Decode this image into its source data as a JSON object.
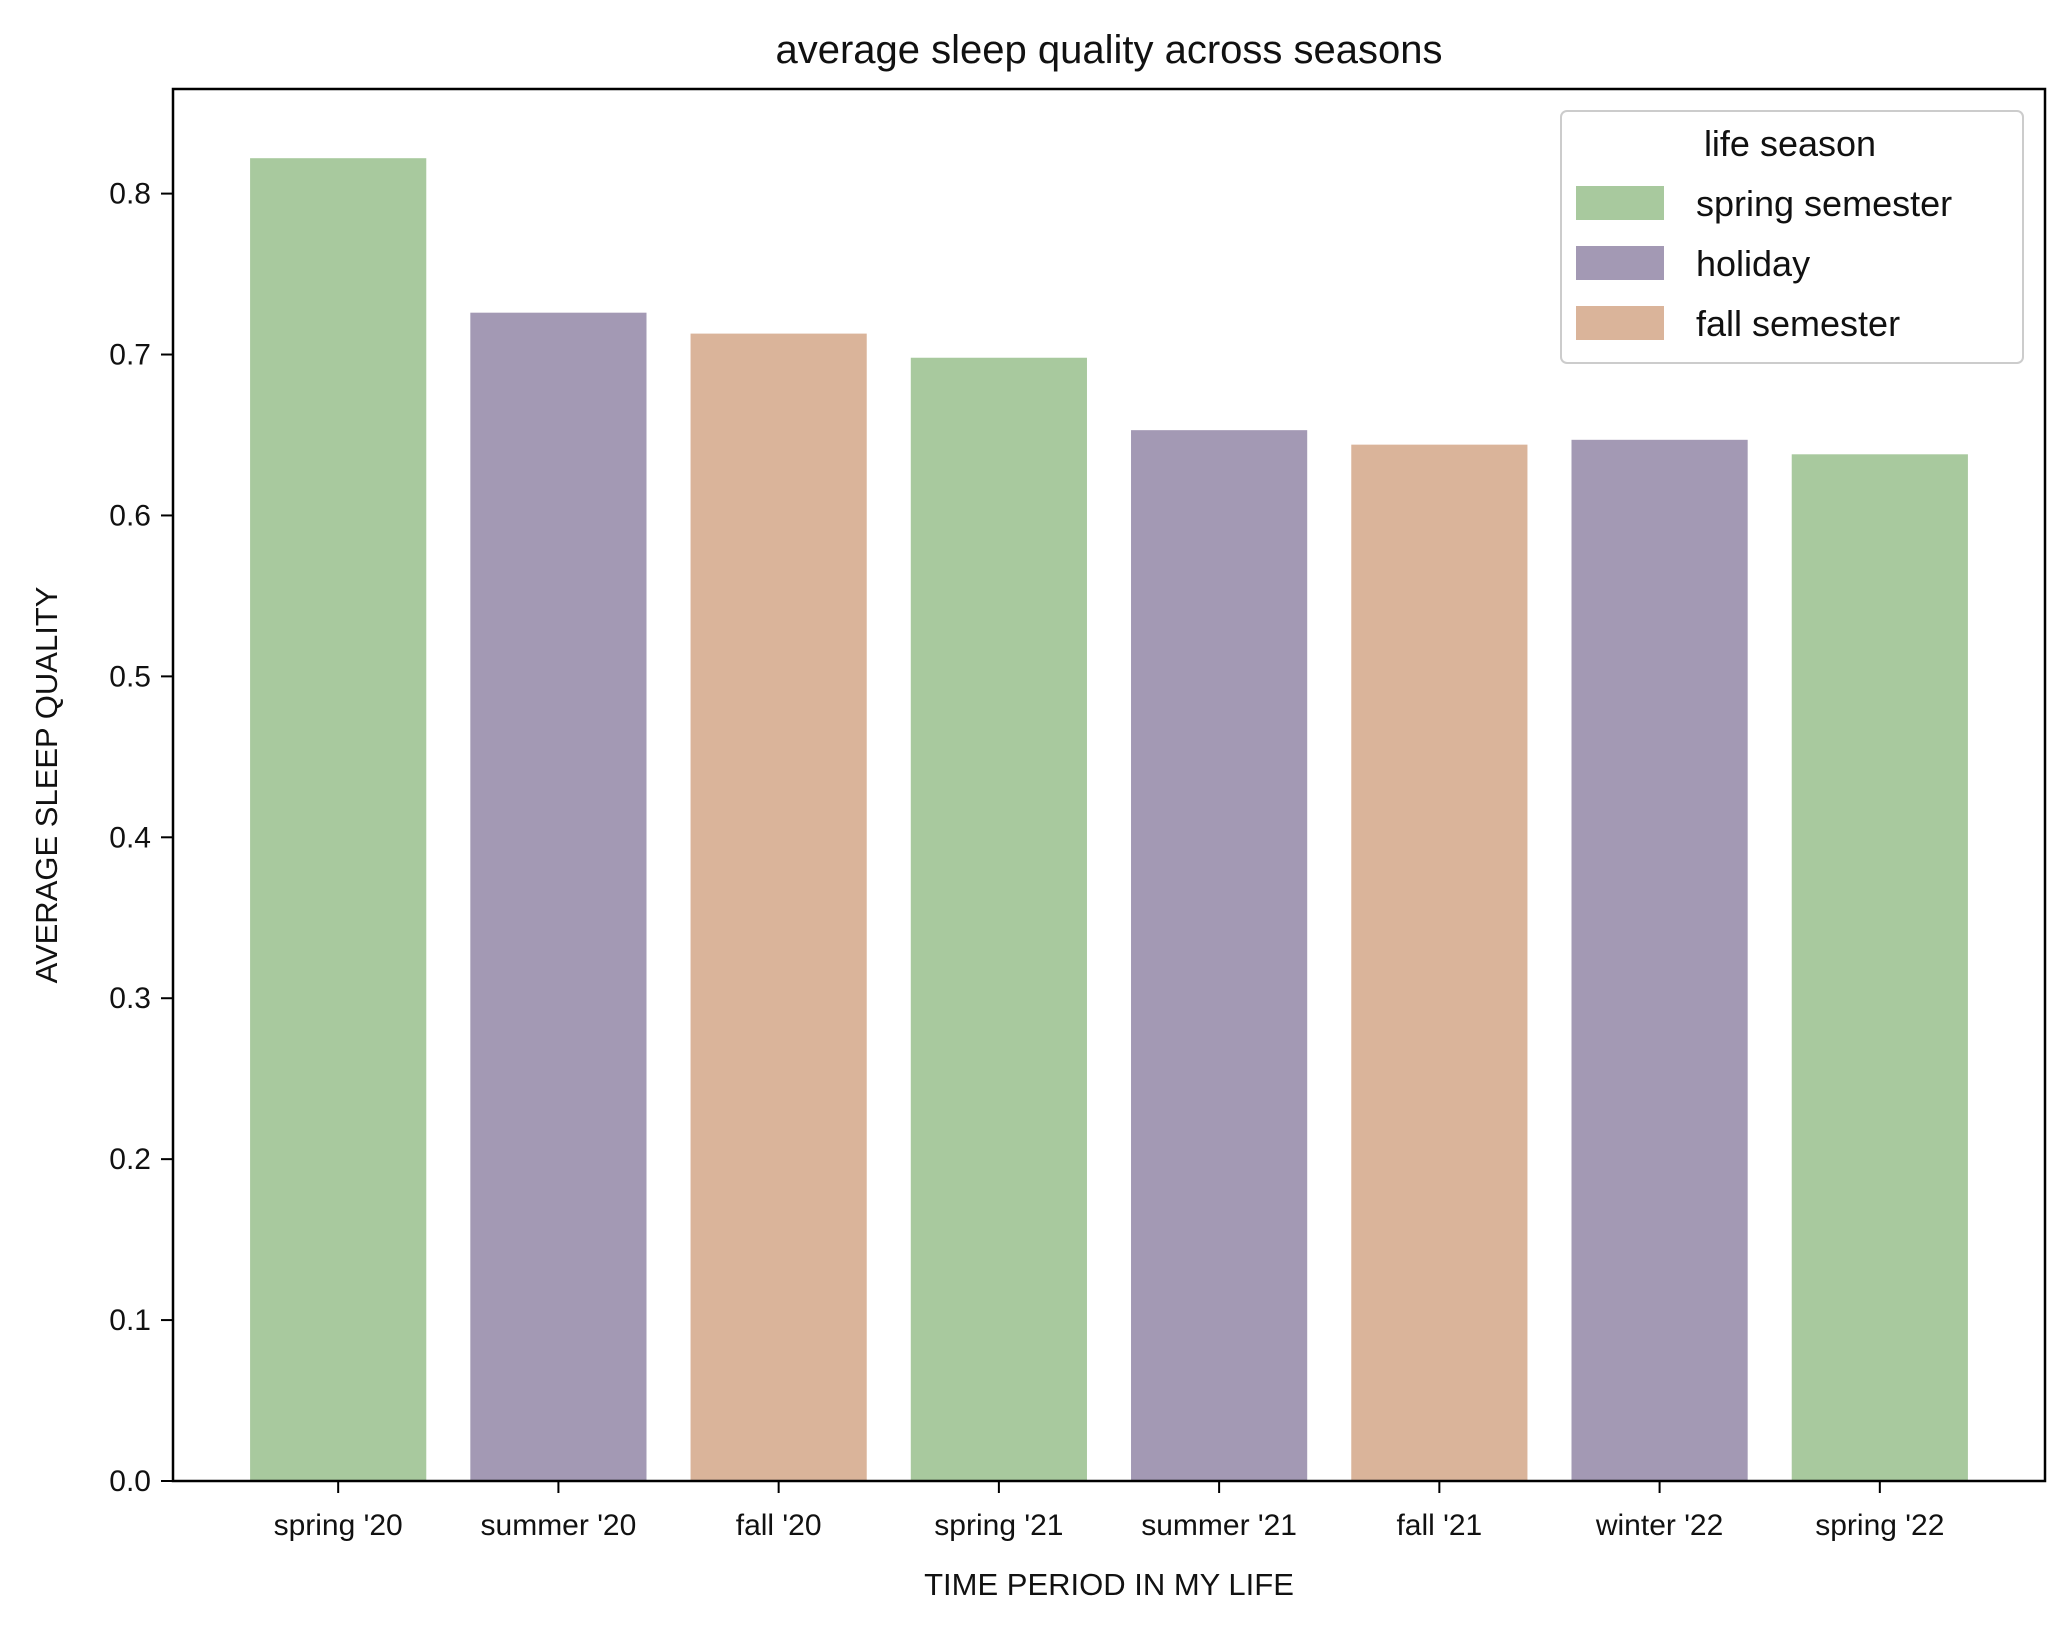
{
  "chart_data": {
    "type": "bar",
    "title": "average sleep quality across seasons",
    "xlabel": "TIME PERIOD IN MY LIFE",
    "ylabel": "AVERAGE SLEEP QUALITY",
    "categories": [
      "spring '20",
      "summer '20",
      "fall '20",
      "spring '21",
      "summer '21",
      "fall '21",
      "winter '22",
      "spring '22"
    ],
    "values": [
      0.822,
      0.726,
      0.713,
      0.698,
      0.653,
      0.644,
      0.647,
      0.638
    ],
    "bar_groups": [
      "spring semester",
      "holiday",
      "fall semester",
      "spring semester",
      "holiday",
      "fall semester",
      "holiday",
      "spring semester"
    ],
    "ylim": [
      0,
      0.865
    ],
    "yticks": [
      "0.0",
      "0.1",
      "0.2",
      "0.3",
      "0.4",
      "0.5",
      "0.6",
      "0.7",
      "0.8"
    ],
    "grid": false,
    "legend": {
      "title": "life season",
      "position": "top-right",
      "entries": [
        {
          "label": "spring semester",
          "color": "#a8c99e"
        },
        {
          "label": "holiday",
          "color": "#a399b4"
        },
        {
          "label": "fall semester",
          "color": "#dab49a"
        }
      ]
    }
  }
}
